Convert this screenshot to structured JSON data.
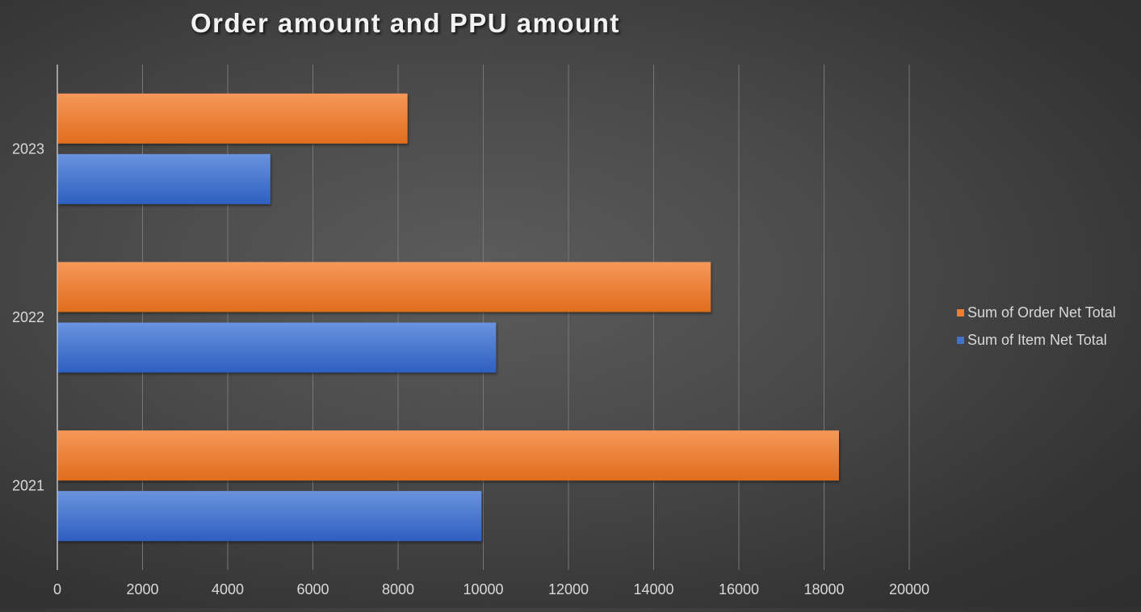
{
  "chart_data": {
    "type": "bar",
    "orientation": "horizontal",
    "title": "Order amount and PPU amount",
    "categories": [
      "2021",
      "2022",
      "2023"
    ],
    "series": [
      {
        "name": "Sum of Item Net Total",
        "values": [
          9960,
          10300,
          5000
        ],
        "color": "#4472c4"
      },
      {
        "name": "Sum of Order Net Total",
        "values": [
          18350,
          15340,
          8220
        ],
        "color": "#ed7d31"
      }
    ],
    "xlim": [
      0,
      20000
    ],
    "xticks": [
      "0",
      "2000",
      "4000",
      "6000",
      "8000",
      "10000",
      "12000",
      "14000",
      "16000",
      "18000",
      "20000"
    ],
    "grid": true,
    "legend_position": "right",
    "xlabel": "",
    "ylabel": ""
  }
}
